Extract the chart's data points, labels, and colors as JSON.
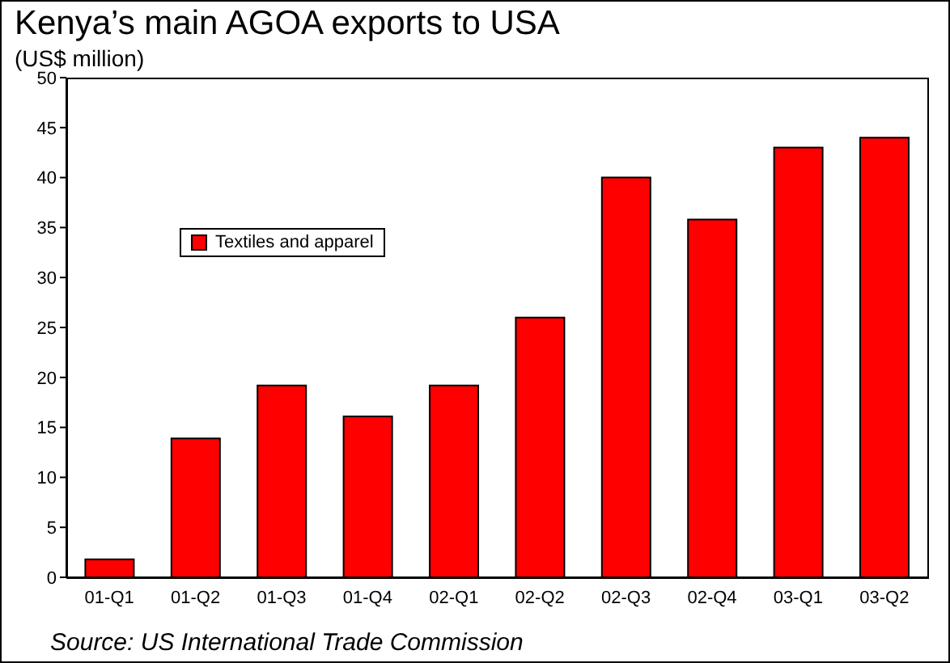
{
  "chart_data": {
    "type": "bar",
    "title": "Kenya’s main AGOA exports to USA",
    "subtitle": "(US$ million)",
    "categories": [
      "01-Q1",
      "01-Q2",
      "01-Q3",
      "01-Q4",
      "02-Q1",
      "02-Q2",
      "02-Q3",
      "02-Q4",
      "03-Q1",
      "03-Q2"
    ],
    "series": [
      {
        "name": "Textiles and apparel",
        "color": "#ff0000",
        "values": [
          1.8,
          13.9,
          19.2,
          16.1,
          19.2,
          26,
          40,
          35.8,
          43,
          44
        ]
      }
    ],
    "ylim": [
      0,
      50
    ],
    "yticks": [
      0,
      5,
      10,
      15,
      20,
      25,
      30,
      35,
      40,
      45,
      50
    ],
    "legend": "top left",
    "annotations": [
      "Source: US International Trade Commission"
    ]
  }
}
